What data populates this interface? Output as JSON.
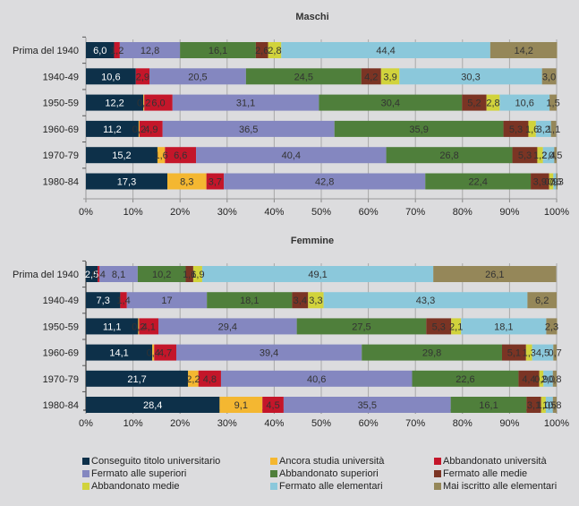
{
  "chart_data": [
    {
      "type": "bar",
      "orientation": "horizontal-stacked-100",
      "title": "Maschi",
      "xlabel": "",
      "ylabel": "",
      "xlim": [
        0,
        100
      ],
      "x_ticks": [
        "0%",
        "10%",
        "20%",
        "30%",
        "40%",
        "50%",
        "60%",
        "70%",
        "80%",
        "90%",
        "100%"
      ],
      "grid": true,
      "categories": [
        "Prima del 1940",
        "1940-49",
        "1950-59",
        "1960-69",
        "1970-79",
        "1980-84"
      ],
      "series": [
        {
          "name": "Conseguito titolo universitario",
          "values": [
            6.0,
            10.6,
            12.2,
            11.2,
            15.2,
            17.3
          ]
        },
        {
          "name": "Ancora studia università",
          "values": [
            0.0,
            0.0,
            0.2,
            0.2,
            1.6,
            8.3
          ]
        },
        {
          "name": "Abbandonato università",
          "values": [
            1.2,
            2.9,
            6.0,
            4.9,
            6.6,
            3.7
          ]
        },
        {
          "name": "Fermato alle superiori",
          "values": [
            12.8,
            20.5,
            31.1,
            36.5,
            40.4,
            42.8
          ]
        },
        {
          "name": "Abbandonato superiori",
          "values": [
            16.1,
            24.5,
            30.4,
            35.9,
            26.8,
            22.4
          ]
        },
        {
          "name": "Fermato alle medie",
          "values": [
            2.6,
            4.2,
            5.2,
            5.3,
            5.3,
            3.9
          ]
        },
        {
          "name": "Abbandonato medie",
          "values": [
            2.8,
            3.9,
            2.8,
            1.6,
            1.2,
            0.9
          ]
        },
        {
          "name": "Fermato alle elementari",
          "values": [
            44.4,
            30.3,
            10.6,
            3.2,
            2.4,
            0.6
          ]
        },
        {
          "name": "Mai iscritto alle elementari",
          "values": [
            14.2,
            3.0,
            1.5,
            1.1,
            0.5,
            0.3
          ]
        }
      ]
    },
    {
      "type": "bar",
      "orientation": "horizontal-stacked-100",
      "title": "Femmine",
      "xlabel": "",
      "ylabel": "",
      "xlim": [
        0,
        100
      ],
      "x_ticks": [
        "0%",
        "10%",
        "20%",
        "30%",
        "40%",
        "50%",
        "60%",
        "70%",
        "80%",
        "90%",
        "100%"
      ],
      "grid": true,
      "categories": [
        "Prima del 1940",
        "1940-49",
        "1950-59",
        "1960-69",
        "1970-79",
        "1980-84"
      ],
      "series": [
        {
          "name": "Conseguito titolo universitario",
          "values": [
            2.5,
            7.3,
            11.1,
            14.1,
            21.7,
            28.4
          ]
        },
        {
          "name": "Ancora studia università",
          "values": [
            0.0,
            0.0,
            0.2,
            0.4,
            2.2,
            9.1
          ]
        },
        {
          "name": "Abbandonato università",
          "values": [
            0.4,
            1.4,
            4.1,
            4.7,
            4.8,
            4.5
          ]
        },
        {
          "name": "Fermato alle superiori",
          "values": [
            8.1,
            17,
            29.4,
            39.4,
            40.6,
            35.5
          ]
        },
        {
          "name": "Abbandonato superiori",
          "values": [
            10.2,
            18.1,
            27.5,
            29.8,
            22.6,
            16.1
          ]
        },
        {
          "name": "Fermato alle medie",
          "values": [
            1.6,
            3.4,
            5.3,
            5.1,
            4.4,
            3.1
          ]
        },
        {
          "name": "Abbandonato medie",
          "values": [
            1.9,
            3.3,
            2.1,
            1.3,
            0.9,
            1.0
          ]
        },
        {
          "name": "Fermato alle elementari",
          "values": [
            49.1,
            43.3,
            18.1,
            4.5,
            2.0,
            1.5
          ]
        },
        {
          "name": "Mai iscritto alle elementari",
          "values": [
            26.1,
            6.2,
            2.3,
            0.7,
            0.8,
            0.8
          ]
        }
      ]
    }
  ],
  "colors": [
    "#0d3049",
    "#f4b731",
    "#c4162a",
    "#8487c0",
    "#4f7f3b",
    "#7b3424",
    "#d1d33c",
    "#8bc8db",
    "#958759"
  ],
  "label_colors": [
    "#ffffff",
    "#333333",
    "#333333",
    "#333333",
    "#333333",
    "#333333",
    "#333333",
    "#333333",
    "#333333"
  ],
  "legend": {
    "placement": "bottom",
    "items": [
      "Conseguito titolo universitario",
      "Ancora studia università",
      "Abbandonato università",
      "Fermato alle superiori",
      "Abbandonato superiori",
      "Fermato alle medie",
      "Abbandonato medie",
      "Fermato alle elementari",
      "Mai iscritto alle elementari"
    ]
  }
}
